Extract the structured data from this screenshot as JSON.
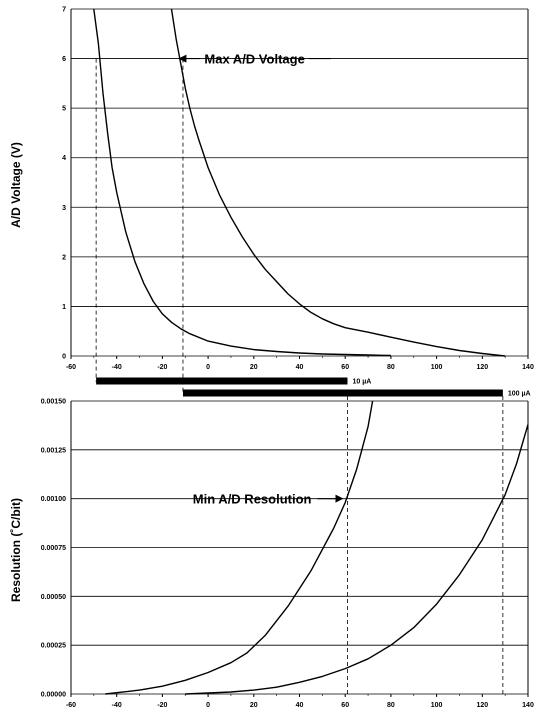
{
  "chart_data": [
    {
      "type": "line",
      "ylabel": "A/D Voltage (V)",
      "xlim": [
        -60,
        140
      ],
      "ylim": [
        0,
        7
      ],
      "x_ticks": [
        "-60",
        "-40",
        "-20",
        "0",
        "20",
        "40",
        "60",
        "80",
        "100",
        "120",
        "140"
      ],
      "y_ticks": [
        "0",
        "1",
        "2",
        "3",
        "4",
        "5",
        "6",
        "7"
      ],
      "grid": "horizontal",
      "series": [
        {
          "x": [
            -50,
            -48,
            -46,
            -44,
            -42,
            -40,
            -36,
            -32,
            -28,
            -24,
            -20,
            -16,
            -12,
            -8,
            0,
            10,
            20,
            30,
            40,
            50,
            60,
            70,
            80
          ],
          "y": [
            7.0,
            6.3,
            5.3,
            4.5,
            3.8,
            3.3,
            2.5,
            1.9,
            1.45,
            1.1,
            0.85,
            0.68,
            0.55,
            0.45,
            0.3,
            0.2,
            0.13,
            0.09,
            0.06,
            0.04,
            0.03,
            0.02,
            0.01
          ]
        },
        {
          "x": [
            -16,
            -14,
            -12,
            -10,
            -8,
            -6,
            -4,
            0,
            5,
            10,
            15,
            20,
            25,
            30,
            35,
            40,
            45,
            50,
            55,
            60,
            70,
            80,
            90,
            100,
            110,
            120,
            130
          ],
          "y": [
            7.0,
            6.4,
            5.9,
            5.4,
            5.0,
            4.65,
            4.35,
            3.8,
            3.25,
            2.8,
            2.4,
            2.05,
            1.75,
            1.5,
            1.25,
            1.05,
            0.88,
            0.75,
            0.65,
            0.57,
            0.48,
            0.38,
            0.28,
            0.19,
            0.11,
            0.05,
            0.0
          ]
        }
      ],
      "annotations": [
        {
          "text": "Max A/D Voltage",
          "x": -13,
          "y": 6
        }
      ],
      "reference_lines": [
        {
          "x": -49,
          "y": 6
        },
        {
          "x": -11,
          "y": 6
        }
      ]
    },
    {
      "type": "bar",
      "orientation": "horizontal",
      "range_bars": [
        {
          "label": "10 µA",
          "from": -49,
          "to": 61
        },
        {
          "label": "100 µA",
          "from": -11,
          "to": 129
        }
      ]
    },
    {
      "type": "line",
      "ylabel": "Resolution (˚C/bit)",
      "xlim": [
        -60,
        140
      ],
      "ylim": [
        0,
        0.0015
      ],
      "x_ticks": [
        "-60",
        "-40",
        "-20",
        "0",
        "20",
        "40",
        "60",
        "80",
        "100",
        "120",
        "140"
      ],
      "y_ticks": [
        "0.00000",
        "0.00025",
        "0.00050",
        "0.00075",
        "0.00100",
        "0.00125",
        "0.00150"
      ],
      "grid": "horizontal",
      "series": [
        {
          "x": [
            -45,
            -30,
            -20,
            -10,
            0,
            10,
            17,
            25,
            35,
            45,
            55,
            60,
            65,
            70,
            72
          ],
          "y": [
            0.0,
            2e-05,
            4e-05,
            7e-05,
            0.00011,
            0.00016,
            0.00021,
            0.0003,
            0.00045,
            0.00063,
            0.00085,
            0.00098,
            0.00115,
            0.00137,
            0.0015
          ]
        },
        {
          "x": [
            -10,
            0,
            10,
            20,
            30,
            40,
            50,
            60,
            70,
            80,
            90,
            100,
            110,
            120,
            130,
            135,
            140
          ],
          "y": [
            0.0,
            5e-06,
            1e-05,
            2e-05,
            3.5e-05,
            6e-05,
            9e-05,
            0.00013,
            0.00018,
            0.00025,
            0.00034,
            0.00046,
            0.00061,
            0.00079,
            0.00102,
            0.00118,
            0.00138
          ]
        }
      ],
      "annotations": [
        {
          "text": "Min A/D Resolution",
          "x": 61,
          "y": 0.001
        }
      ],
      "reference_lines": [
        {
          "x": 61,
          "y": 0.001
        },
        {
          "x": 129,
          "y": 0.001
        }
      ]
    }
  ]
}
